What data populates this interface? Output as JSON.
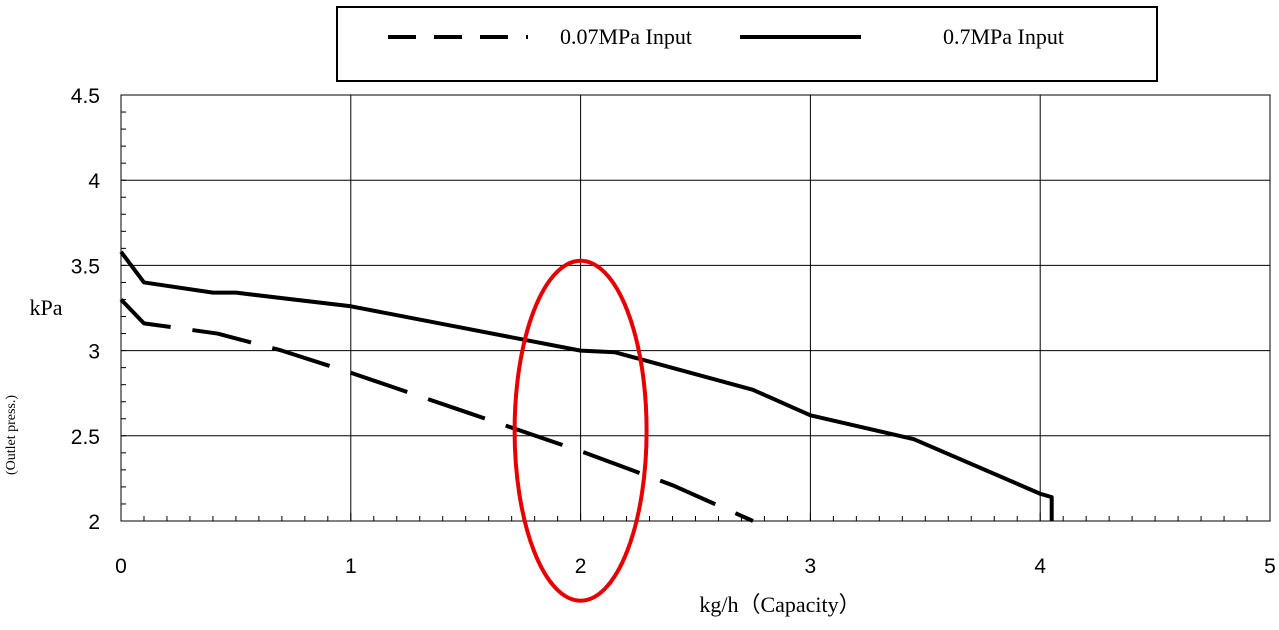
{
  "chart_data": {
    "type": "line",
    "legend": {
      "placement": "top-center",
      "entries": [
        {
          "label": "0.07MPa Input",
          "style": "dashed"
        },
        {
          "label": "0.7MPa Input",
          "style": "solid"
        }
      ]
    },
    "xlabel": "kg/h（Capacity）",
    "ylabel": "kPa",
    "ylabel_sub": "(Outlet press.)",
    "xlim": [
      0,
      5
    ],
    "ylim": [
      2,
      4.5
    ],
    "xticks": [
      "0",
      "1",
      "2",
      "3",
      "4",
      "5"
    ],
    "yticks": [
      "2",
      "2.5",
      "3",
      "3.5",
      "4",
      "4.5"
    ],
    "grid": true,
    "series": [
      {
        "name": "0.07MPa Input",
        "style": "dashed",
        "color": "#000000",
        "x": [
          0,
          0.1,
          0.42,
          0.7,
          1.0,
          1.5,
          2.0,
          2.4,
          2.75
        ],
        "y": [
          3.3,
          3.16,
          3.1,
          3.0,
          2.87,
          2.64,
          2.41,
          2.21,
          2.0
        ]
      },
      {
        "name": "0.7MPa Input",
        "style": "solid",
        "color": "#000000",
        "x": [
          0,
          0.1,
          0.4,
          0.5,
          1.0,
          1.5,
          2.0,
          2.15,
          2.75,
          3.0,
          3.45,
          4.0,
          4.05,
          4.05
        ],
        "y": [
          3.58,
          3.4,
          3.34,
          3.34,
          3.26,
          3.13,
          3.0,
          2.99,
          2.77,
          2.62,
          2.48,
          2.16,
          2.14,
          2.0
        ]
      }
    ],
    "annotation": {
      "shape": "ellipse",
      "color": "#e60000",
      "cx": 2.0,
      "cy": 2.53
    }
  }
}
